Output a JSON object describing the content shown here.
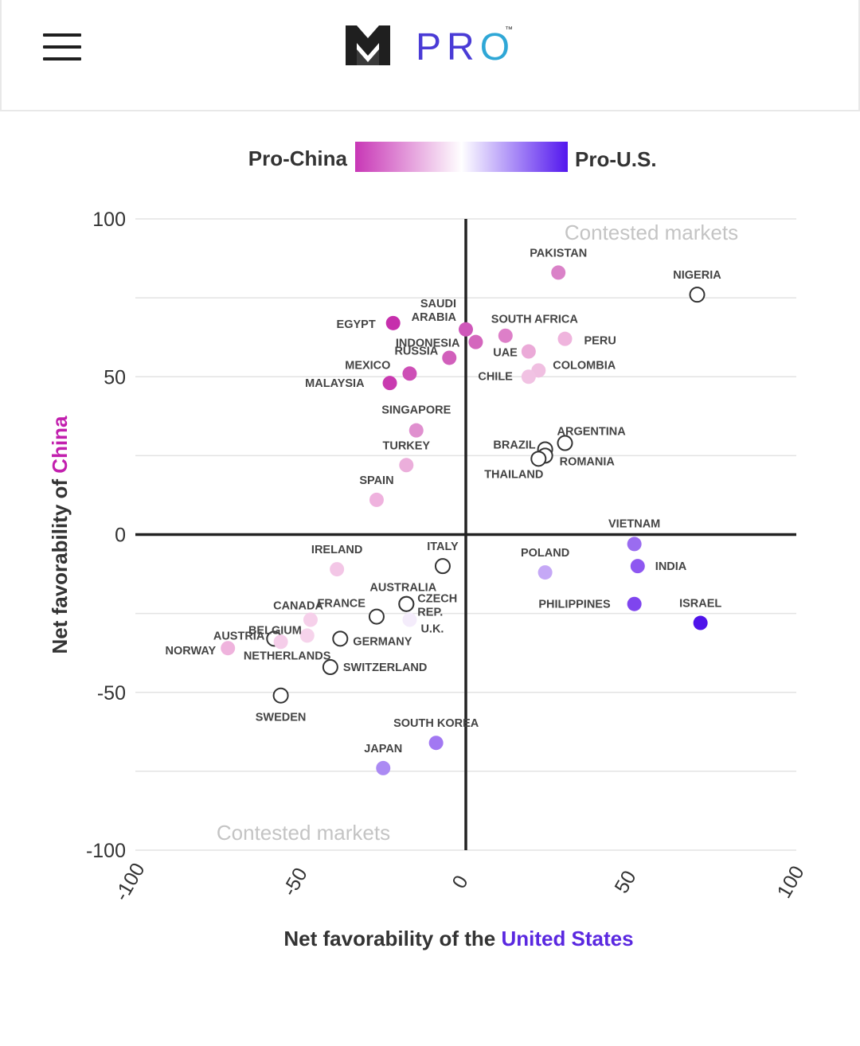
{
  "header": {
    "menu_icon": "hamburger-menu-icon",
    "logo_icon": "m-chevron-logo-icon",
    "logo_text_main": "PR",
    "logo_text_accent": "O",
    "logo_trademark": "™"
  },
  "colors": {
    "pro_china": "#c837b6",
    "pro_us": "#5317ee",
    "neutral": "#ffffff",
    "axis": "#222222",
    "grid": "#e3e3e3",
    "china_word": "#c21fae",
    "us_word": "#5a28e0"
  },
  "legend": {
    "left_label": "Pro-China",
    "right_label": "Pro-U.S."
  },
  "chart_data": {
    "type": "scatter",
    "xlabel_prefix": "Net favorability of the ",
    "xlabel_highlight": "United States",
    "ylabel_prefix": "Net favorability of ",
    "ylabel_highlight": "China",
    "xlim": [
      -100,
      100
    ],
    "ylim": [
      -100,
      100
    ],
    "xticks": [
      "-100",
      "-50",
      "0",
      "50",
      "100"
    ],
    "yticks": [
      "100",
      "50",
      "0",
      "-50",
      "-100"
    ],
    "grid": true,
    "annotations": [
      "Contested markets",
      "Contested markets"
    ],
    "points": [
      {
        "label": "PAKISTAN",
        "x": 28,
        "y": 83,
        "color": "#da82c8"
      },
      {
        "label": "NIGERIA",
        "x": 70,
        "y": 76,
        "color": "#ffffff"
      },
      {
        "label": "SAUDI",
        "label2": "ARABIA",
        "x": 0,
        "y": 65,
        "color": "#cf58ba"
      },
      {
        "label": "EGYPT",
        "x": -22,
        "y": 67,
        "color": "#c62fac"
      },
      {
        "label": "SOUTH AFRICA",
        "x": 12,
        "y": 63,
        "color": "#dd7fc8"
      },
      {
        "label": "INDONESIA",
        "x": 3,
        "y": 61,
        "color": "#d466bd"
      },
      {
        "label": "PERU",
        "x": 30,
        "y": 62,
        "color": "#efb4dd"
      },
      {
        "label": "RUSSIA",
        "x": -5,
        "y": 56,
        "color": "#d15fbb"
      },
      {
        "label": "UAE",
        "x": 19,
        "y": 58,
        "color": "#ebaad8"
      },
      {
        "label": "COLOMBIA",
        "x": 22,
        "y": 52,
        "color": "#f0bfe1"
      },
      {
        "label": "CHILE",
        "x": 19,
        "y": 50,
        "color": "#f1c2e3"
      },
      {
        "label": "MEXICO",
        "x": -17,
        "y": 51,
        "color": "#cd4fb6"
      },
      {
        "label": "MALAYSIA",
        "x": -23,
        "y": 48,
        "color": "#c93ab0"
      },
      {
        "label": "SINGAPORE",
        "x": -15,
        "y": 33,
        "color": "#e090cf"
      },
      {
        "label": "ARGENTINA",
        "x": 30,
        "y": 29,
        "color": "#ffffff"
      },
      {
        "label": "BRAZIL",
        "x": 24,
        "y": 27,
        "color": "#ffffff"
      },
      {
        "label": "ROMANIA",
        "x": 24,
        "y": 25,
        "color": "#ffffff"
      },
      {
        "label": "THAILAND",
        "x": 22,
        "y": 24,
        "color": "#ffffff"
      },
      {
        "label": "TURKEY",
        "x": -18,
        "y": 22,
        "color": "#ebaedb"
      },
      {
        "label": "SPAIN",
        "x": -27,
        "y": 11,
        "color": "#efb2de"
      },
      {
        "label": "VIETNAM",
        "x": 51,
        "y": -3,
        "color": "#9a6cf0"
      },
      {
        "label": "ITALY",
        "x": -7,
        "y": -10,
        "color": "#ffffff"
      },
      {
        "label": "IRELAND",
        "x": -39,
        "y": -11,
        "color": "#f3c6e6"
      },
      {
        "label": "POLAND",
        "x": 24,
        "y": -12,
        "color": "#c5a8f6"
      },
      {
        "label": "INDIA",
        "x": 52,
        "y": -10,
        "color": "#8e57f1"
      },
      {
        "label": "PHILIPPINES",
        "x": 51,
        "y": -22,
        "color": "#7f45ee"
      },
      {
        "label": "ISRAEL",
        "x": 71,
        "y": -28,
        "color": "#4f13ea"
      },
      {
        "label": "AUSTRALIA",
        "x": -18,
        "y": -22,
        "color": "#ffffff"
      },
      {
        "label": "CZECH",
        "label2": "REP.",
        "x": -18,
        "y": -22,
        "color": "#ffffff"
      },
      {
        "label": "FRANCE",
        "x": -27,
        "y": -26,
        "color": "#ffffff"
      },
      {
        "label": "U.K.",
        "x": -17,
        "y": -27,
        "color": "#f4ecfb"
      },
      {
        "label": "CANADA",
        "x": -47,
        "y": -27,
        "color": "#f6d0ea"
      },
      {
        "label": "BELGIUM",
        "x": -48,
        "y": -32,
        "color": "#f6d3eb"
      },
      {
        "label": "GERMANY",
        "x": -38,
        "y": -33,
        "color": "#ffffff"
      },
      {
        "label": "AUSTRIA",
        "x": -58,
        "y": -33,
        "color": "#ffffff"
      },
      {
        "label": "NETHERLANDS",
        "x": -56,
        "y": -34,
        "color": "#f5cde9"
      },
      {
        "label": "NORWAY",
        "x": -72,
        "y": -36,
        "color": "#efb3dd"
      },
      {
        "label": "SWITZERLAND",
        "x": -41,
        "y": -42,
        "color": "#ffffff"
      },
      {
        "label": "SWEDEN",
        "x": -56,
        "y": -51,
        "color": "#ffffff"
      },
      {
        "label": "SOUTH KOREA",
        "x": -9,
        "y": -66,
        "color": "#a278f2"
      },
      {
        "label": "JAPAN",
        "x": -25,
        "y": -74,
        "color": "#ab8af3"
      }
    ]
  }
}
